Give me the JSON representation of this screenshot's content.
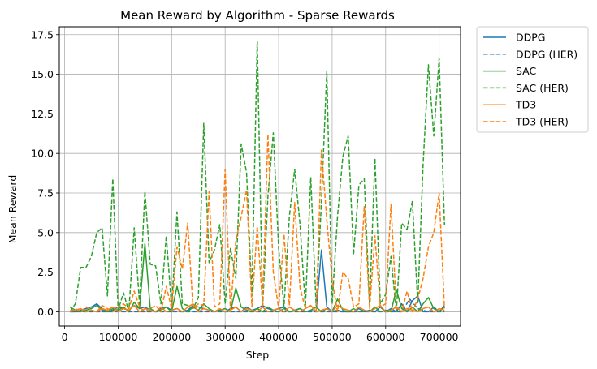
{
  "chart_data": {
    "type": "line",
    "title": "Mean Reward by Algorithm - Sparse Rewards",
    "xlabel": "Step",
    "ylabel": "Mean Reward",
    "xlim": [
      -10000,
      740000
    ],
    "ylim": [
      -0.9,
      18.0
    ],
    "xticks": [
      0,
      100000,
      200000,
      300000,
      400000,
      500000,
      600000,
      700000
    ],
    "yticks": [
      0.0,
      2.5,
      5.0,
      7.5,
      10.0,
      12.5,
      15.0,
      17.5
    ],
    "grid": true,
    "legend_position": "outside-right",
    "series": [
      {
        "name": "DDPG",
        "color": "#1f77b4",
        "dash": "solid",
        "x": [
          10000,
          20000,
          30000,
          40000,
          50000,
          60000,
          70000,
          80000,
          90000,
          100000,
          110000,
          120000,
          130000,
          140000,
          150000,
          160000,
          170000,
          180000,
          190000,
          200000,
          210000,
          220000,
          230000,
          240000,
          250000,
          260000,
          270000,
          280000,
          290000,
          300000,
          310000,
          320000,
          330000,
          340000,
          350000,
          360000,
          370000,
          380000,
          390000,
          400000,
          410000,
          420000,
          430000,
          440000,
          450000,
          460000,
          470000,
          480000,
          490000,
          500000,
          510000,
          520000,
          530000,
          540000,
          550000,
          560000,
          570000,
          580000,
          590000,
          600000,
          610000,
          620000,
          630000,
          640000,
          650000,
          660000,
          670000,
          680000,
          690000,
          700000,
          710000
        ],
        "y": [
          0.0,
          0.0,
          0.1,
          0.2,
          0.3,
          0.5,
          0.2,
          0.0,
          0.1,
          0.3,
          0.2,
          0.1,
          0.4,
          0.2,
          0.3,
          0.1,
          0.0,
          0.2,
          0.3,
          0.1,
          0.2,
          0.0,
          0.1,
          0.4,
          0.3,
          0.2,
          0.1,
          0.0,
          0.1,
          0.0,
          0.2,
          0.3,
          0.0,
          0.3,
          0.1,
          0.2,
          0.4,
          0.2,
          0.1,
          0.2,
          0.3,
          0.0,
          0.1,
          0.2,
          0.0,
          0.1,
          0.0,
          3.9,
          0.3,
          0.0,
          0.1,
          0.0,
          0.0,
          0.0,
          0.2,
          0.0,
          0.1,
          0.0,
          0.3,
          0.0,
          0.2,
          0.0,
          0.5,
          0.0,
          0.7,
          1.0,
          0.0,
          0.0,
          0.3,
          0.0,
          0.4
        ]
      },
      {
        "name": "DDPG (HER)",
        "color": "#1f77b4",
        "dash": "dashed",
        "x": [
          10000,
          30000,
          60000,
          90000,
          120000,
          150000,
          180000,
          210000,
          240000,
          270000,
          300000,
          330000,
          360000,
          390000,
          420000,
          450000,
          480000,
          510000,
          540000,
          570000,
          600000,
          630000,
          645000,
          660000,
          680000,
          710000
        ],
        "y": [
          0.0,
          0.0,
          0.0,
          0.0,
          0.0,
          0.0,
          0.0,
          0.0,
          0.0,
          0.0,
          0.0,
          0.0,
          0.0,
          0.0,
          0.0,
          0.0,
          0.0,
          0.0,
          0.0,
          0.0,
          0.0,
          0.0,
          0.8,
          0.2,
          0.0,
          0.0
        ]
      },
      {
        "name": "SAC",
        "color": "#2ca02c",
        "dash": "solid",
        "x": [
          10000,
          20000,
          30000,
          40000,
          50000,
          60000,
          70000,
          80000,
          90000,
          100000,
          110000,
          120000,
          130000,
          140000,
          150000,
          160000,
          170000,
          180000,
          190000,
          200000,
          210000,
          220000,
          230000,
          240000,
          250000,
          260000,
          270000,
          280000,
          290000,
          300000,
          310000,
          320000,
          330000,
          340000,
          350000,
          360000,
          370000,
          380000,
          390000,
          400000,
          410000,
          420000,
          430000,
          440000,
          450000,
          460000,
          470000,
          480000,
          490000,
          500000,
          510000,
          520000,
          530000,
          540000,
          550000,
          560000,
          570000,
          580000,
          590000,
          600000,
          610000,
          620000,
          630000,
          640000,
          650000,
          660000,
          670000,
          680000,
          690000,
          700000,
          710000
        ],
        "y": [
          0.3,
          0.1,
          0.0,
          0.1,
          0.2,
          0.4,
          0.1,
          0.0,
          0.2,
          0.1,
          0.3,
          0.0,
          0.6,
          0.2,
          4.3,
          0.2,
          0.0,
          0.1,
          0.3,
          0.0,
          1.6,
          0.2,
          0.0,
          0.3,
          0.1,
          0.5,
          0.2,
          0.0,
          0.1,
          0.2,
          0.0,
          1.5,
          0.3,
          0.1,
          0.0,
          0.2,
          0.0,
          0.3,
          0.1,
          0.0,
          0.2,
          0.0,
          0.1,
          0.2,
          0.0,
          0.1,
          0.3,
          0.0,
          0.2,
          0.0,
          0.8,
          0.1,
          0.0,
          0.2,
          0.0,
          0.1,
          0.0,
          0.3,
          0.0,
          0.1,
          0.0,
          1.4,
          0.2,
          0.0,
          0.3,
          0.0,
          0.5,
          0.9,
          0.2,
          0.0,
          0.3
        ]
      },
      {
        "name": "SAC (HER)",
        "color": "#2ca02c",
        "dash": "dashed",
        "x": [
          10000,
          20000,
          30000,
          40000,
          50000,
          60000,
          70000,
          80000,
          90000,
          100000,
          110000,
          120000,
          130000,
          140000,
          150000,
          160000,
          170000,
          180000,
          190000,
          200000,
          210000,
          220000,
          230000,
          240000,
          250000,
          260000,
          270000,
          280000,
          290000,
          300000,
          310000,
          320000,
          330000,
          340000,
          350000,
          360000,
          370000,
          380000,
          390000,
          400000,
          410000,
          420000,
          430000,
          440000,
          450000,
          460000,
          470000,
          480000,
          490000,
          500000,
          510000,
          520000,
          530000,
          540000,
          550000,
          560000,
          570000,
          580000,
          590000,
          600000,
          610000,
          620000,
          630000,
          640000,
          650000,
          660000,
          670000,
          680000,
          690000,
          700000,
          710000
        ],
        "y": [
          0.0,
          0.5,
          2.8,
          2.8,
          3.5,
          5.0,
          5.3,
          1.0,
          8.4,
          0.1,
          1.2,
          0.0,
          5.3,
          0.5,
          7.6,
          3.0,
          2.9,
          0.5,
          4.8,
          0.2,
          6.3,
          0.5,
          0.4,
          0.2,
          0.9,
          11.9,
          3.1,
          3.9,
          5.5,
          0.5,
          4.0,
          2.1,
          10.6,
          8.8,
          1.0,
          17.1,
          0.2,
          7.3,
          11.3,
          4.0,
          0.3,
          6.0,
          9.0,
          5.5,
          0.3,
          8.5,
          0.4,
          6.9,
          15.2,
          0.5,
          6.0,
          9.8,
          11.1,
          3.6,
          8.0,
          8.4,
          0.4,
          9.7,
          0.5,
          1.1,
          3.5,
          0.0,
          5.6,
          5.2,
          7.0,
          0.5,
          9.3,
          15.6,
          11.1,
          16.0,
          5.5
        ]
      },
      {
        "name": "TD3",
        "color": "#ff7f0e",
        "dash": "solid",
        "x": [
          10000,
          20000,
          30000,
          40000,
          50000,
          60000,
          70000,
          80000,
          90000,
          100000,
          110000,
          120000,
          130000,
          140000,
          150000,
          160000,
          170000,
          180000,
          190000,
          200000,
          210000,
          220000,
          230000,
          240000,
          250000,
          260000,
          270000,
          280000,
          290000,
          300000,
          310000,
          320000,
          330000,
          340000,
          350000,
          360000,
          370000,
          380000,
          390000,
          400000,
          410000,
          420000,
          430000,
          440000,
          450000,
          460000,
          470000,
          480000,
          490000,
          500000,
          510000,
          520000,
          530000,
          540000,
          550000,
          560000,
          570000,
          580000,
          590000,
          600000,
          610000,
          620000,
          630000,
          640000,
          650000,
          660000,
          670000,
          680000,
          690000,
          700000,
          710000
        ],
        "y": [
          0.0,
          0.1,
          0.2,
          0.0,
          0.1,
          0.0,
          0.2,
          0.1,
          0.3,
          0.0,
          0.2,
          0.1,
          0.4,
          0.0,
          0.2,
          0.1,
          0.0,
          0.3,
          0.0,
          0.1,
          0.2,
          0.0,
          0.3,
          0.5,
          0.0,
          0.2,
          0.1,
          0.0,
          0.2,
          0.0,
          0.1,
          0.3,
          0.0,
          0.2,
          0.1,
          0.0,
          0.3,
          0.0,
          0.1,
          0.2,
          0.0,
          0.3,
          0.1,
          0.0,
          0.2,
          0.4,
          0.0,
          0.1,
          0.2,
          0.0,
          0.4,
          0.2,
          0.1,
          0.0,
          0.3,
          0.1,
          0.0,
          0.2,
          0.4,
          0.0,
          0.1,
          0.3,
          0.0,
          0.2,
          0.1,
          0.0,
          0.2,
          0.3,
          0.0,
          0.2,
          0.1
        ]
      },
      {
        "name": "TD3 (HER)",
        "color": "#ff7f0e",
        "dash": "dashed",
        "x": [
          10000,
          20000,
          30000,
          40000,
          50000,
          60000,
          70000,
          80000,
          90000,
          100000,
          110000,
          120000,
          130000,
          140000,
          150000,
          160000,
          170000,
          180000,
          190000,
          200000,
          210000,
          220000,
          230000,
          240000,
          250000,
          260000,
          270000,
          280000,
          290000,
          300000,
          310000,
          320000,
          330000,
          340000,
          350000,
          360000,
          370000,
          380000,
          390000,
          400000,
          410000,
          420000,
          430000,
          440000,
          450000,
          460000,
          470000,
          480000,
          490000,
          500000,
          510000,
          520000,
          530000,
          540000,
          550000,
          560000,
          570000,
          580000,
          590000,
          600000,
          610000,
          620000,
          630000,
          640000,
          650000,
          660000,
          670000,
          680000,
          690000,
          700000,
          710000
        ],
        "y": [
          0.0,
          0.2,
          0.0,
          0.3,
          0.1,
          0.0,
          0.4,
          0.2,
          0.0,
          0.3,
          0.5,
          0.2,
          1.3,
          0.3,
          0.0,
          0.2,
          0.4,
          0.0,
          1.6,
          0.2,
          4.1,
          2.7,
          5.6,
          0.2,
          0.5,
          0.4,
          7.6,
          0.3,
          0.5,
          9.0,
          0.0,
          4.5,
          6.0,
          7.7,
          0.3,
          5.4,
          0.4,
          11.2,
          2.5,
          0.2,
          4.9,
          0.4,
          6.9,
          1.5,
          0.2,
          0.4,
          0.0,
          10.2,
          5.8,
          2.0,
          0.0,
          2.5,
          2.1,
          0.3,
          0.5,
          6.7,
          0.2,
          4.8,
          0.3,
          0.5,
          6.8,
          0.2,
          0.0,
          1.3,
          0.0,
          0.8,
          2.1,
          4.1,
          5.0,
          7.5,
          0.2
        ]
      }
    ]
  }
}
